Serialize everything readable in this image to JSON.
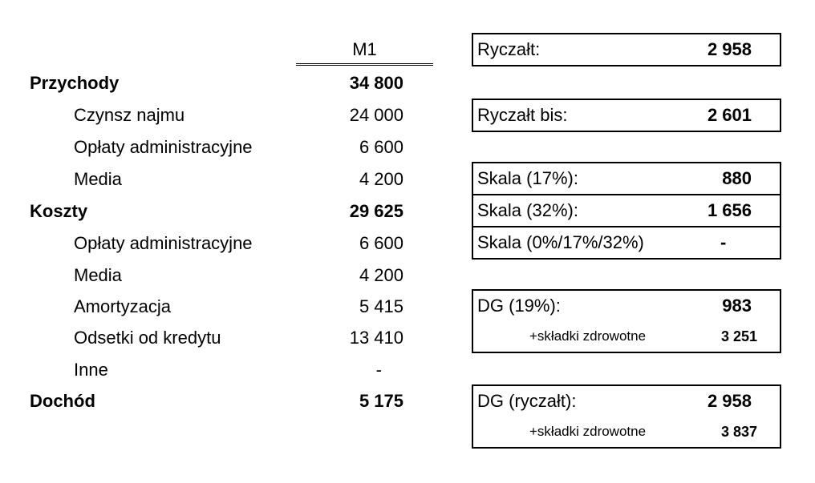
{
  "table": {
    "column_header": "M1",
    "rows": [
      {
        "label": "Przychody",
        "value": "34 800",
        "bold": true
      },
      {
        "label": "Czynsz najmu",
        "value": "24 000"
      },
      {
        "label": "Opłaty administracyjne",
        "value": "6 600"
      },
      {
        "label": "Media",
        "value": "4 200"
      },
      {
        "label": "Koszty",
        "value": "29 625",
        "bold": true
      },
      {
        "label": "Opłaty administracyjne",
        "value": "6 600"
      },
      {
        "label": "Media",
        "value": "4 200"
      },
      {
        "label": "Amortyzacja",
        "value": "5 415"
      },
      {
        "label": "Odsetki od kredytu",
        "value": "13 410"
      },
      {
        "label": "Inne",
        "value": "-"
      },
      {
        "label": "Dochód",
        "value": "5 175",
        "bold": true
      }
    ]
  },
  "summary": {
    "ryczalt": {
      "label": "Ryczałt:",
      "value": "2 958"
    },
    "ryczalt_bis": {
      "label": "Ryczałt bis:",
      "value": "2 601"
    },
    "skala17": {
      "label": "Skala (17%):",
      "value": "880"
    },
    "skala32": {
      "label": "Skala (32%):",
      "value": "1 656"
    },
    "skala_mix": {
      "label": "Skala (0%/17%/32%)",
      "value": "-"
    },
    "dg19": {
      "label": "DG (19%):",
      "value": "983",
      "sub_label": "+składki zdrowotne",
      "sub_value": "3 251"
    },
    "dg_ryczalt": {
      "label": "DG (ryczałt):",
      "value": "2 958",
      "sub_label": "+składki zdrowotne",
      "sub_value": "3 837"
    }
  }
}
